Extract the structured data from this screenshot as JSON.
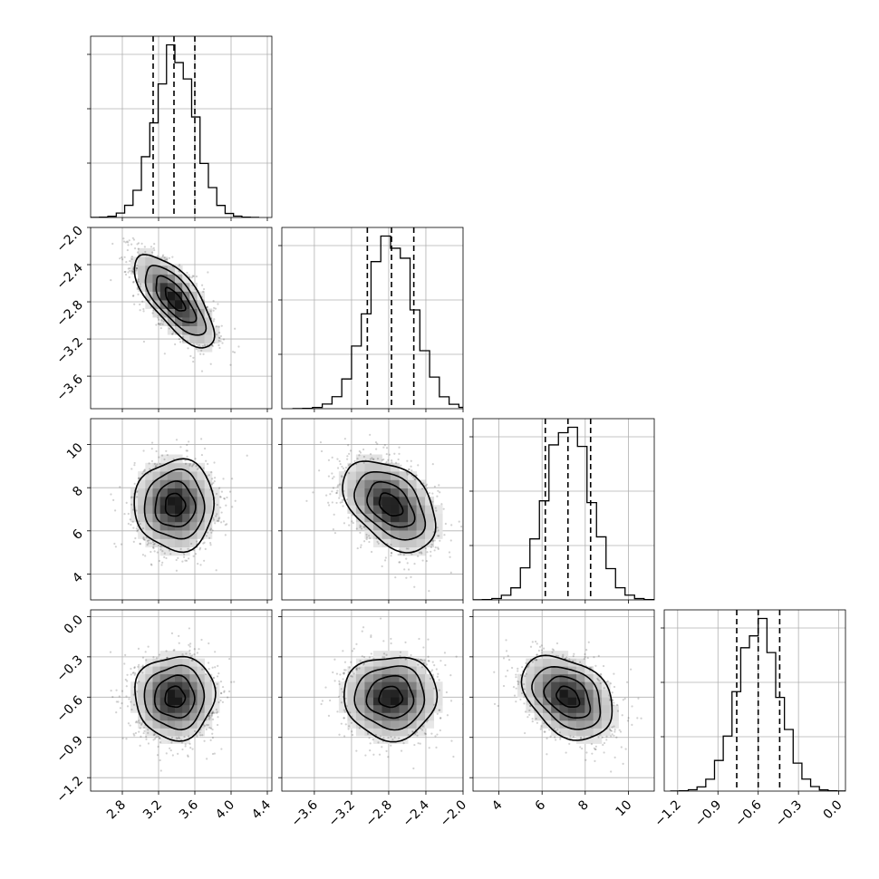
{
  "chart_data": {
    "type": "corner",
    "colors": {
      "line": "#000000",
      "grid": "#b0b0b0",
      "points": "#000000"
    },
    "grid": true,
    "parameters": [
      {
        "name": "",
        "range": [
          2.45,
          4.45
        ],
        "ticks": [
          2.8,
          3.2,
          3.6,
          4.0,
          4.4
        ],
        "tick_labels": [
          "2.8",
          "3.2",
          "3.6",
          "4.0",
          "4.4"
        ],
        "mean": 3.38,
        "std": 0.22,
        "quantiles": [
          3.14,
          3.37,
          3.6
        ]
      },
      {
        "name": "",
        "range": [
          -3.95,
          -2.0
        ],
        "ticks": [
          -3.6,
          -3.2,
          -2.8,
          -2.4,
          -2.0
        ],
        "tick_labels": [
          "−3.6",
          "−3.2",
          "−2.8",
          "−2.4",
          "−2.0"
        ],
        "mean": -2.78,
        "std": 0.25,
        "quantiles": [
          -3.03,
          -2.77,
          -2.53
        ]
      },
      {
        "name": "",
        "range": [
          2.8,
          11.2
        ],
        "ticks": [
          4,
          6,
          8,
          10
        ],
        "tick_labels": [
          "4",
          "6",
          "8",
          "10"
        ],
        "mean": 7.2,
        "std": 1.05,
        "quantiles": [
          6.15,
          7.2,
          8.25
        ]
      },
      {
        "name": "",
        "range": [
          -1.3,
          0.05
        ],
        "ticks": [
          -1.2,
          -0.9,
          -0.6,
          -0.3,
          0.0
        ],
        "tick_labels": [
          "−1.2",
          "−0.9",
          "−0.6",
          "−0.3",
          "0.0"
        ],
        "mean": -0.6,
        "std": 0.155,
        "quantiles": [
          -0.76,
          -0.6,
          -0.44
        ]
      }
    ],
    "correlations": [
      {
        "i": 1,
        "j": 0,
        "rho": -0.72
      },
      {
        "i": 2,
        "j": 0,
        "rho": 0.0
      },
      {
        "i": 2,
        "j": 1,
        "rho": -0.42
      },
      {
        "i": 3,
        "j": 0,
        "rho": 0.0
      },
      {
        "i": 3,
        "j": 1,
        "rho": 0.0
      },
      {
        "i": 3,
        "j": 2,
        "rho": -0.35
      }
    ],
    "histogram_bins": 20,
    "contour_levels_sigma": [
      0.5,
      1.0,
      1.5,
      2.0
    ]
  }
}
